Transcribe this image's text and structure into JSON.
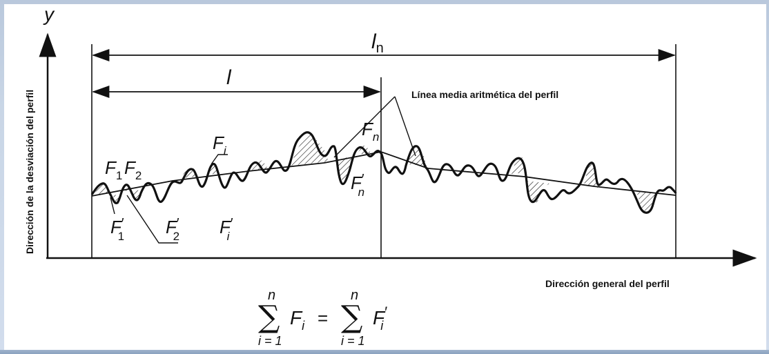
{
  "diagram": {
    "y_axis_symbol": "y",
    "y_axis_label": "Dirección de la desviación del perfil",
    "x_axis_label": "Dirección general del perfil",
    "evaluation_length_label": "l",
    "evaluation_length_subscript": "n",
    "sampling_length_label": "l",
    "mean_line_label": "Línea media aritmética del perfil",
    "area_labels": {
      "F1": {
        "base": "F",
        "sub": "1"
      },
      "F2": {
        "base": "F",
        "sub": "2"
      },
      "Fi": {
        "base": "F",
        "sub": "i"
      },
      "Fn": {
        "base": "F",
        "sub": "n"
      },
      "F1p": {
        "base": "F",
        "sub": "1",
        "prime": "′"
      },
      "F2p": {
        "base": "F",
        "sub": "2",
        "prime": "′"
      },
      "Fip": {
        "base": "F",
        "sub": "i",
        "prime": "′"
      },
      "Fnp": {
        "base": "F",
        "sub": "n",
        "prime": "′"
      }
    },
    "formula": {
      "sum_symbol": "∑",
      "upper": "n",
      "lower": "i = 1",
      "left_term": "F",
      "left_sub": "i",
      "equals": "=",
      "right_term": "F",
      "right_sub": "i",
      "right_prime": "′"
    }
  }
}
